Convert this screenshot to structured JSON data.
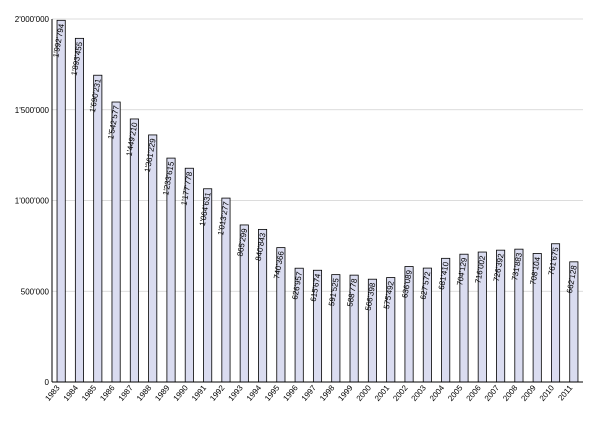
{
  "chart_data": {
    "type": "bar",
    "categories": [
      "1983",
      "1984",
      "1985",
      "1986",
      "1987",
      "1988",
      "1989",
      "1990",
      "1991",
      "1992",
      "1993",
      "1994",
      "1995",
      "1996",
      "1997",
      "1998",
      "1999",
      "2000",
      "2001",
      "2002",
      "2003",
      "2004",
      "2005",
      "2006",
      "2007",
      "2008",
      "2009",
      "2010",
      "2011"
    ],
    "values": [
      1992794,
      1893455,
      1690231,
      1542577,
      1449210,
      1361229,
      1233615,
      1177778,
      1064631,
      1013277,
      865299,
      840843,
      740366,
      626957,
      615674,
      591525,
      588778,
      566398,
      575492,
      636089,
      627572,
      681410,
      704129,
      716002,
      726392,
      731883,
      708104,
      761675,
      662128
    ],
    "data_labels": [
      "1'992'794",
      "1'893'455",
      "1'690'231",
      "1'542'577",
      "1'449'210",
      "1'361'229",
      "1'233'615",
      "1'177'778",
      "1'064'631",
      "1'013'277",
      "865'299",
      "840'843",
      "740'366",
      "626'957",
      "615'674",
      "591'525",
      "588'778",
      "566'398",
      "575'492",
      "636'089",
      "627'572",
      "681'410",
      "704'129",
      "716'002",
      "726'392",
      "731'883",
      "708'104",
      "761'675",
      "662'128"
    ],
    "title": "",
    "xlabel": "",
    "ylabel": "",
    "ylim": [
      0,
      2000000
    ],
    "yticks": [
      0,
      500000,
      1000000,
      1500000,
      2000000
    ],
    "ytick_labels": [
      "0",
      "500'000",
      "1'000'000",
      "1'500'000",
      "2'000'000"
    ],
    "grid": "horizontal",
    "legend": "none",
    "colors": {
      "bar_fill": "#dadcf0",
      "bar_stroke": "#000000",
      "grid": "#d0d0d0"
    }
  }
}
